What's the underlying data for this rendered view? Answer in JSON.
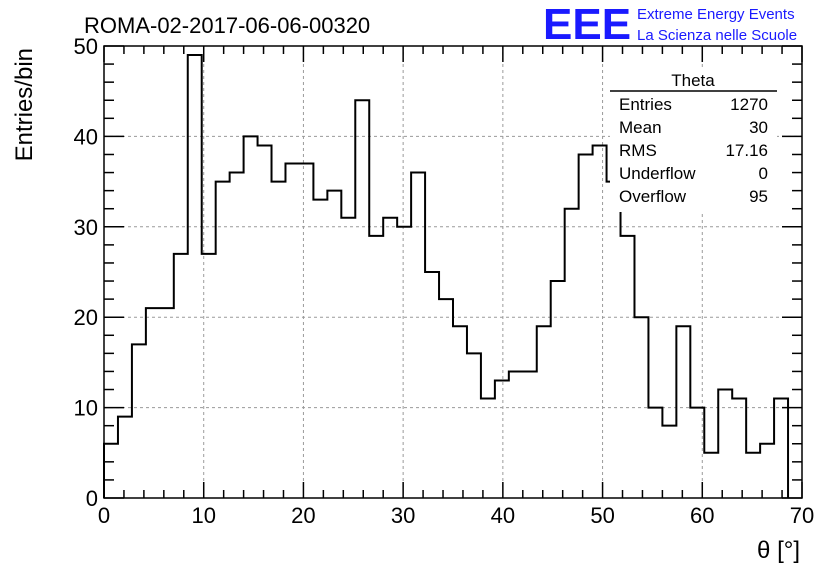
{
  "header": {
    "title": "ROMA-02-2017-06-06-00320",
    "logo_text": "EEE",
    "logo_line1": "Extreme Energy Events",
    "logo_line2": "La Scienza nelle Scuole",
    "logo_color": "#1a1aff"
  },
  "stats": {
    "name": "Theta",
    "rows": [
      {
        "label": "Entries",
        "value": "1270"
      },
      {
        "label": "Mean",
        "value": "30"
      },
      {
        "label": "RMS",
        "value": "17.16"
      },
      {
        "label": "Underflow",
        "value": "0"
      },
      {
        "label": "Overflow",
        "value": "95"
      }
    ]
  },
  "chart_data": {
    "type": "bar",
    "style": "step-histogram",
    "xlabel": "θ [°]",
    "ylabel": "Entries/bin",
    "xlim": [
      0,
      70
    ],
    "ylim": [
      0,
      50
    ],
    "xticks": [
      0,
      10,
      20,
      30,
      40,
      50,
      60,
      70
    ],
    "yticks": [
      0,
      10,
      20,
      30,
      40,
      50
    ],
    "grid": true,
    "bin_edges": [
      0,
      1.4,
      2.8,
      4.2,
      5.6,
      7,
      8.4,
      9.8,
      11.2,
      12.6,
      14,
      15.4,
      16.8,
      18.2,
      19.6,
      21,
      22.4,
      23.8,
      25.2,
      26.6,
      28,
      29.4,
      30.8,
      32.2,
      33.6,
      35,
      36.4,
      37.8,
      39.2,
      40.6,
      42,
      43.4,
      44.8,
      46.2,
      47.6,
      49,
      50.4,
      51.8,
      53.2,
      54.6,
      56,
      57.4,
      58.8,
      60.2,
      61.6,
      63,
      64.4,
      65.8,
      67.2,
      68.6
    ],
    "values": [
      6,
      9,
      17,
      21,
      21,
      27,
      49,
      27,
      35,
      36,
      40,
      39,
      35,
      37,
      37,
      33,
      34,
      31,
      44,
      29,
      31,
      30,
      36,
      25,
      22,
      19,
      16,
      11,
      13,
      14,
      14,
      19,
      24,
      32,
      38,
      39,
      35,
      29,
      20,
      10,
      8,
      19,
      10,
      5,
      12,
      11,
      5,
      6,
      11
    ]
  }
}
